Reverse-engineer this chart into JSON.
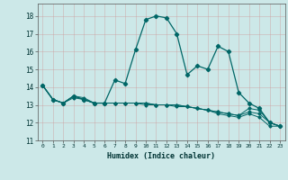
{
  "xlabel": "Humidex (Indice chaleur)",
  "bg_color": "#cce8e8",
  "grid_color": "#b0cccc",
  "line_color": "#006666",
  "xlim": [
    -0.5,
    23.5
  ],
  "ylim": [
    11,
    18.7
  ],
  "yticks": [
    11,
    12,
    13,
    14,
    15,
    16,
    17,
    18
  ],
  "xticks": [
    0,
    1,
    2,
    3,
    4,
    5,
    6,
    7,
    8,
    9,
    10,
    11,
    12,
    13,
    14,
    15,
    16,
    17,
    18,
    19,
    20,
    21,
    22,
    23
  ],
  "series": [
    [
      14.1,
      13.3,
      13.1,
      13.5,
      13.3,
      13.1,
      13.1,
      14.4,
      14.2,
      16.1,
      17.8,
      18.0,
      17.9,
      17.0,
      14.7,
      15.2,
      15.0,
      16.3,
      16.0,
      13.7,
      13.1,
      12.8,
      12.0,
      11.8
    ],
    [
      14.1,
      13.3,
      13.1,
      13.5,
      13.3,
      13.1,
      13.1,
      13.1,
      13.1,
      13.1,
      13.1,
      13.0,
      13.0,
      13.0,
      12.9,
      12.8,
      12.7,
      12.6,
      12.5,
      12.4,
      12.8,
      12.7,
      12.0,
      11.8
    ],
    [
      14.1,
      13.3,
      13.1,
      13.5,
      13.4,
      13.1,
      13.1,
      13.1,
      13.1,
      13.1,
      13.1,
      13.0,
      13.0,
      13.0,
      12.9,
      12.8,
      12.7,
      12.6,
      12.5,
      12.4,
      12.6,
      12.5,
      12.0,
      11.8
    ],
    [
      14.1,
      13.3,
      13.1,
      13.4,
      13.3,
      13.1,
      13.1,
      13.1,
      13.1,
      13.1,
      13.0,
      13.0,
      13.0,
      12.9,
      12.9,
      12.8,
      12.7,
      12.5,
      12.4,
      12.3,
      12.5,
      12.3,
      11.8,
      11.8
    ]
  ]
}
